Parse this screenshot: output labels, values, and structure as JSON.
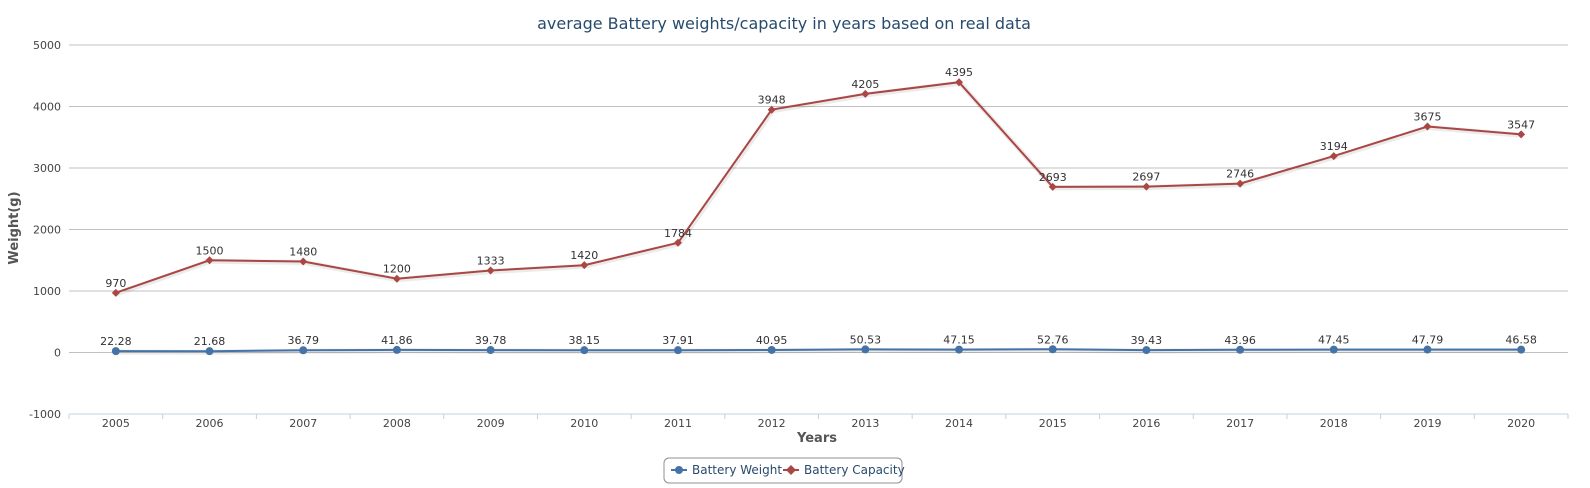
{
  "chart_data": {
    "type": "line",
    "title": "average Battery weights/capacity in years based on real data",
    "xlabel": "Years",
    "ylabel": "Weight(g)",
    "ylim": [
      -1000,
      5000
    ],
    "yticks": [
      -1000,
      0,
      1000,
      2000,
      3000,
      4000,
      5000
    ],
    "grid": true,
    "legend_position": "bottom-center",
    "categories": [
      "2005",
      "2006",
      "2007",
      "2008",
      "2009",
      "2010",
      "2011",
      "2012",
      "2013",
      "2014",
      "2015",
      "2016",
      "2017",
      "2018",
      "2019",
      "2020"
    ],
    "series": [
      {
        "name": "Battery Weight",
        "color": "#4572a7",
        "marker": "circle",
        "values": [
          22.28,
          21.68,
          36.79,
          41.86,
          39.78,
          38.15,
          37.91,
          40.95,
          50.53,
          47.15,
          52.76,
          39.43,
          43.96,
          47.45,
          47.79,
          46.58
        ]
      },
      {
        "name": "Battery Capacity",
        "color": "#aa4643",
        "marker": "diamond",
        "values": [
          970,
          1500,
          1480,
          1200,
          1333,
          1420,
          1784,
          3948,
          4205,
          4395,
          2693,
          2697,
          2746,
          3194,
          3675,
          3547
        ]
      }
    ]
  }
}
